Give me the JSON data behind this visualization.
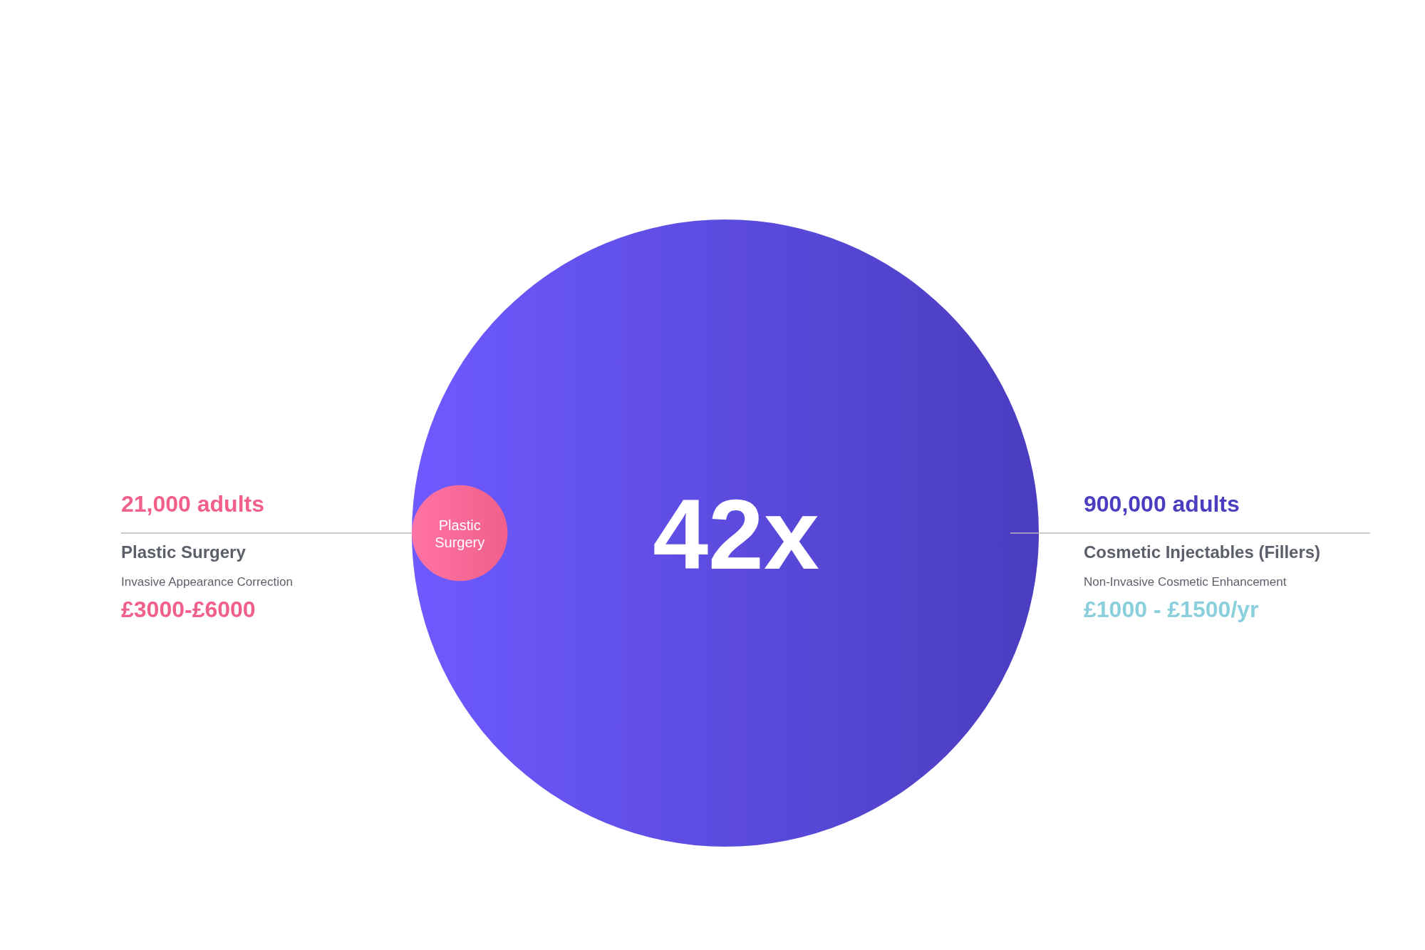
{
  "chart_data": {
    "type": "other",
    "categories": [
      "Plastic Surgery",
      "Cosmetic Injectables (Fillers)"
    ],
    "values": [
      21000,
      900000
    ],
    "value_labels": [
      "21,000 adults",
      "900,000 adults"
    ],
    "colors": [
      "#f0608a",
      "#4a3dbf"
    ],
    "annotations": [
      "42x",
      "Invasive Appearance Correction",
      "£3000-£6000",
      "Non-Invasive Cosmetic Enhancement",
      "£1000 - £1500/yr"
    ]
  }
}
